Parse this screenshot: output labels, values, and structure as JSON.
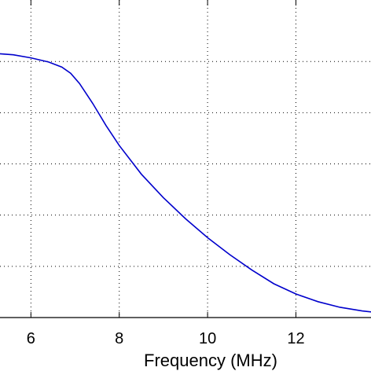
{
  "chart_data": {
    "type": "line",
    "title": "",
    "xlabel": "Frequency (MHz)",
    "ylabel": "",
    "xlim": [
      5.3,
      13.7
    ],
    "ylim": [
      0,
      6.2
    ],
    "x_ticks": [
      6,
      8,
      10,
      12
    ],
    "x_tick_labels": [
      "6",
      "8",
      "10",
      "12"
    ],
    "y_grid": [
      1,
      2,
      3,
      4,
      5
    ],
    "grid": true,
    "series": [
      {
        "color": "#0000cc",
        "x": [
          5.3,
          5.6,
          6.0,
          6.4,
          6.7,
          6.9,
          7.1,
          7.4,
          7.7,
          8.0,
          8.5,
          9.0,
          9.5,
          10.0,
          10.5,
          11.0,
          11.5,
          12.0,
          12.5,
          13.0,
          13.5,
          13.7
        ],
        "y": [
          5.15,
          5.13,
          5.07,
          4.99,
          4.89,
          4.77,
          4.57,
          4.18,
          3.75,
          3.36,
          2.8,
          2.34,
          1.93,
          1.56,
          1.23,
          0.93,
          0.66,
          0.46,
          0.31,
          0.2,
          0.13,
          0.11
        ]
      }
    ]
  }
}
